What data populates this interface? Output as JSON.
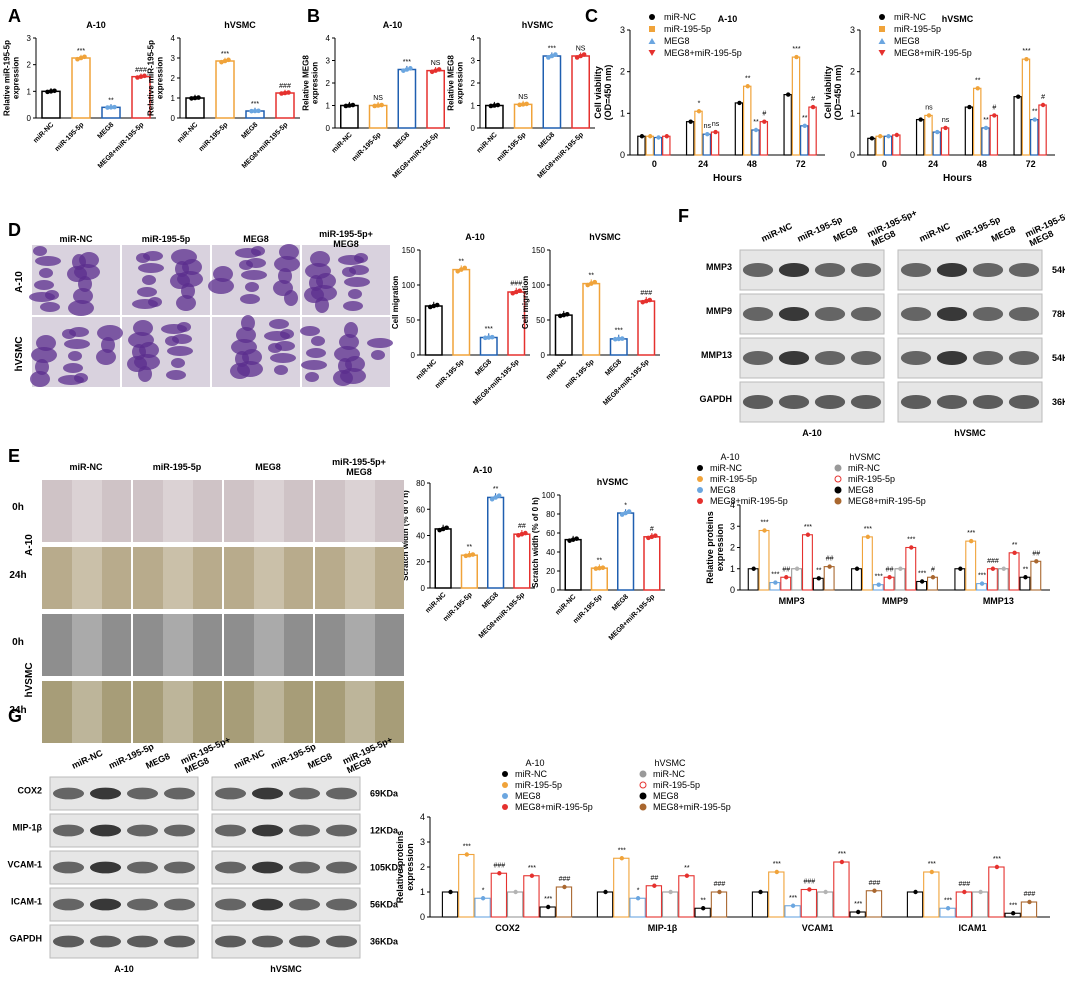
{
  "colors": {
    "black": "#000000",
    "orange": "#f0a33a",
    "blue": "#1f5fb0",
    "lightblue": "#6ba6e0",
    "red": "#e5312e",
    "grey": "#b3b3b3",
    "brown": "#a9672f",
    "micro_bg": "#d9d2de",
    "tissue": "#5b2d8e"
  },
  "panels": {
    "A": "A",
    "B": "B",
    "C": "C",
    "D": "D",
    "E": "E",
    "F": "F",
    "G": "G"
  },
  "groups": [
    "miR-NC",
    "miR-195-5p",
    "MEG8",
    "MEG8+miR-195-5p"
  ],
  "blot_group_labels": [
    "miR-NC",
    "miR-195-5p",
    "MEG8",
    "miR-195-5p+\nMEG8"
  ],
  "micro_group_labels": [
    "miR-NC",
    "miR-195-5p",
    "MEG8",
    "miR-195-5p+\nMEG8"
  ],
  "cell_lines": {
    "a10": "A-10",
    "hvsmc": "hVSMC"
  },
  "time_labels": {
    "t0": "0h",
    "t24": "24h"
  },
  "chart_data": [
    {
      "id": "A1",
      "type": "bar",
      "title": "A-10",
      "ylabel": "Relative miR-195-5p\nexpression",
      "ylim": [
        0,
        3
      ],
      "yticks": [
        0,
        1,
        2,
        3
      ],
      "categories": [
        "miR-NC",
        "miR-195-5p",
        "MEG8",
        "MEG8+miR-195-5p"
      ],
      "values": [
        1.0,
        2.25,
        0.4,
        1.55
      ],
      "marks": [
        "",
        "***",
        "**",
        "###"
      ]
    },
    {
      "id": "A2",
      "type": "bar",
      "title": "hVSMC",
      "ylabel": "Relative miR-195-5p\nexpression",
      "ylim": [
        0,
        4
      ],
      "yticks": [
        0,
        1,
        2,
        3,
        4
      ],
      "categories": [
        "miR-NC",
        "miR-195-5p",
        "MEG8",
        "MEG8+miR-195-5p"
      ],
      "values": [
        1.0,
        2.85,
        0.35,
        1.25
      ],
      "marks": [
        "",
        "***",
        "***",
        "###"
      ]
    },
    {
      "id": "B1",
      "type": "bar",
      "title": "A-10",
      "ylabel": "Relative MEG8\nexpression",
      "ylim": [
        0,
        4
      ],
      "yticks": [
        0,
        1,
        2,
        3,
        4
      ],
      "categories": [
        "miR-NC",
        "miR-195-5p",
        "MEG8",
        "MEG8+miR-195-5p"
      ],
      "values": [
        1.0,
        1.0,
        2.6,
        2.55
      ],
      "marks": [
        "",
        "NS",
        "***",
        "NS"
      ]
    },
    {
      "id": "B2",
      "type": "bar",
      "title": "hVSMC",
      "ylabel": "Relative MEG8\nexpression",
      "ylim": [
        0,
        4
      ],
      "yticks": [
        0,
        1,
        2,
        3,
        4
      ],
      "categories": [
        "miR-NC",
        "miR-195-5p",
        "MEG8",
        "MEG8+miR-195-5p"
      ],
      "values": [
        1.0,
        1.05,
        3.2,
        3.2
      ],
      "marks": [
        "",
        "NS",
        "***",
        "NS"
      ]
    },
    {
      "id": "C1",
      "type": "bar",
      "title": "A-10",
      "xlabel": "Hours",
      "ylabel": "Cell viability\n(OD=450 nm)",
      "ylim": [
        0,
        3
      ],
      "yticks": [
        0,
        1,
        2,
        3
      ],
      "categories": [
        "0",
        "24",
        "48",
        "72"
      ],
      "series": [
        {
          "name": "miR-NC",
          "values": [
            0.45,
            0.8,
            1.25,
            1.45
          ]
        },
        {
          "name": "miR-195-5p",
          "values": [
            0.45,
            1.05,
            1.65,
            2.35
          ]
        },
        {
          "name": "MEG8",
          "values": [
            0.42,
            0.5,
            0.6,
            0.7
          ]
        },
        {
          "name": "MEG8+miR-195-5p",
          "values": [
            0.45,
            0.55,
            0.8,
            1.15
          ]
        }
      ],
      "marks": [
        [
          "",
          "",
          "",
          ""
        ],
        [
          "",
          "*",
          "ns",
          "ns"
        ],
        [
          "",
          "**",
          "**",
          "#"
        ],
        [
          "",
          "***",
          "**",
          "#"
        ]
      ],
      "legend": [
        "miR-NC",
        "miR-195-5p",
        "MEG8",
        "MEG8+miR-195-5p"
      ]
    },
    {
      "id": "C2",
      "type": "bar",
      "title": "hVSMC",
      "xlabel": "Hours",
      "ylabel": "Cell viability\n(OD=450 nm)",
      "ylim": [
        0,
        3
      ],
      "yticks": [
        0,
        1,
        2,
        3
      ],
      "categories": [
        "0",
        "24",
        "48",
        "72"
      ],
      "series": [
        {
          "name": "miR-NC",
          "values": [
            0.4,
            0.85,
            1.15,
            1.4
          ]
        },
        {
          "name": "miR-195-5p",
          "values": [
            0.45,
            0.95,
            1.6,
            2.3
          ]
        },
        {
          "name": "MEG8",
          "values": [
            0.45,
            0.55,
            0.65,
            0.85
          ]
        },
        {
          "name": "MEG8+miR-195-5p",
          "values": [
            0.48,
            0.65,
            0.95,
            1.2
          ]
        }
      ],
      "marks": [
        [
          "",
          "",
          "",
          ""
        ],
        [
          "",
          "ns",
          "",
          "ns"
        ],
        [
          "",
          "**",
          "**",
          "#"
        ],
        [
          "",
          "***",
          "**",
          "#"
        ]
      ],
      "legend": [
        "miR-NC",
        "miR-195-5p",
        "MEG8",
        "MEG8+miR-195-5p"
      ]
    },
    {
      "id": "D1",
      "type": "bar",
      "title": "A-10",
      "ylabel": "Cell migration",
      "ylim": [
        0,
        150
      ],
      "yticks": [
        0,
        50,
        100,
        150
      ],
      "categories": [
        "miR-NC",
        "miR-195-5p",
        "MEG8",
        "MEG8+miR-195-5p"
      ],
      "values": [
        70,
        122,
        25,
        90
      ],
      "marks": [
        "",
        "**",
        "***",
        "###"
      ]
    },
    {
      "id": "D2",
      "type": "bar",
      "title": "hVSMC",
      "ylabel": "Cell migration",
      "ylim": [
        0,
        150
      ],
      "yticks": [
        0,
        50,
        100,
        150
      ],
      "categories": [
        "miR-NC",
        "miR-195-5p",
        "MEG8",
        "MEG8+miR-195-5p"
      ],
      "values": [
        57,
        102,
        23,
        77
      ],
      "marks": [
        "",
        "**",
        "***",
        "###"
      ]
    },
    {
      "id": "E1",
      "type": "bar",
      "title": "A-10",
      "ylabel": "Scratch width (% of 0 h)",
      "ylim": [
        0,
        80
      ],
      "yticks": [
        0,
        20,
        40,
        60,
        80
      ],
      "categories": [
        "miR-NC",
        "miR-195-5p",
        "MEG8",
        "MEG8+miR-195-5p"
      ],
      "values": [
        45,
        25,
        69,
        41
      ],
      "marks": [
        "",
        "**",
        "**",
        "##"
      ]
    },
    {
      "id": "E2",
      "type": "bar",
      "title": "hVSMC",
      "ylabel": "Scratch width (% of 0 h)",
      "ylim": [
        0,
        100
      ],
      "yticks": [
        0,
        20,
        40,
        60,
        80,
        100
      ],
      "categories": [
        "miR-NC",
        "miR-195-5p",
        "MEG8",
        "MEG8+miR-195-5p"
      ],
      "values": [
        53,
        23,
        81,
        56
      ],
      "marks": [
        "",
        "**",
        "*",
        "#"
      ]
    },
    {
      "id": "F",
      "type": "bar",
      "ylabel": "Relative proteins\nexpression",
      "ylim": [
        0,
        4
      ],
      "yticks": [
        0,
        1,
        2,
        3,
        4
      ],
      "categories": [
        "MMP3",
        "MMP9",
        "MMP13"
      ],
      "series": [
        {
          "name": "A-10 miR-NC",
          "values": [
            1.0,
            1.0,
            1.0
          ]
        },
        {
          "name": "A-10 miR-195-5p",
          "values": [
            2.8,
            2.5,
            2.3
          ]
        },
        {
          "name": "A-10 MEG8",
          "values": [
            0.35,
            0.25,
            0.3
          ]
        },
        {
          "name": "A-10 MEG8+miR-195-5p",
          "values": [
            0.6,
            0.6,
            1.0
          ]
        },
        {
          "name": "hVSMC miR-NC",
          "values": [
            1.0,
            1.0,
            1.0
          ]
        },
        {
          "name": "hVSMC miR-195-5p",
          "values": [
            2.6,
            2.0,
            1.75
          ]
        },
        {
          "name": "hVSMC MEG8",
          "values": [
            0.55,
            0.4,
            0.6
          ]
        },
        {
          "name": "hVSMC MEG8+miR-195-5p",
          "values": [
            1.1,
            0.6,
            1.35
          ]
        }
      ],
      "marks": [
        [
          "",
          "***",
          "***",
          "##",
          "",
          "***",
          "**",
          "##"
        ],
        [
          "",
          "***",
          "***",
          "##",
          "",
          "***",
          "***",
          "#"
        ],
        [
          "",
          "***",
          "***",
          "###",
          "",
          "**",
          "**",
          "##"
        ]
      ],
      "legend_titles": [
        "A-10",
        "hVSMC"
      ],
      "legend": [
        "miR-NC",
        "miR-195-5p",
        "MEG8",
        "MEG8+miR-195-5p"
      ]
    },
    {
      "id": "G",
      "type": "bar",
      "ylabel": "Relative proteins\nexpression",
      "ylim": [
        0,
        4
      ],
      "yticks": [
        0,
        1,
        2,
        3,
        4
      ],
      "categories": [
        "COX2",
        "MIP-1β",
        "VCAM1",
        "ICAM1"
      ],
      "series": [
        {
          "name": "A-10 miR-NC",
          "values": [
            1.0,
            1.0,
            1.0,
            1.0
          ]
        },
        {
          "name": "A-10 miR-195-5p",
          "values": [
            2.5,
            2.35,
            1.8,
            1.8
          ]
        },
        {
          "name": "A-10 MEG8",
          "values": [
            0.75,
            0.75,
            0.45,
            0.35
          ]
        },
        {
          "name": "A-10 MEG8+miR-195-5p",
          "values": [
            1.75,
            1.25,
            1.1,
            1.0
          ]
        },
        {
          "name": "hVSMC miR-NC",
          "values": [
            1.0,
            1.0,
            1.0,
            1.0
          ]
        },
        {
          "name": "hVSMC miR-195-5p",
          "values": [
            1.65,
            1.65,
            2.2,
            2.0
          ]
        },
        {
          "name": "hVSMC MEG8",
          "values": [
            0.4,
            0.35,
            0.2,
            0.15
          ]
        },
        {
          "name": "hVSMC MEG8+miR-195-5p",
          "values": [
            1.2,
            1.0,
            1.05,
            0.6
          ]
        }
      ],
      "marks": [
        [
          "",
          "***",
          "*",
          "###",
          "",
          "***",
          "***",
          "###"
        ],
        [
          "",
          "***",
          "*",
          "##",
          "",
          "**",
          "**",
          "###"
        ],
        [
          "",
          "***",
          "***",
          "###",
          "",
          "***",
          "***",
          "###"
        ],
        [
          "",
          "***",
          "***",
          "###",
          "",
          "***",
          "***",
          "###"
        ]
      ],
      "legend_titles": [
        "A-10",
        "hVSMC"
      ],
      "legend": [
        "miR-NC",
        "miR-195-5p",
        "MEG8",
        "MEG8+miR-195-5p"
      ]
    }
  ],
  "blots": {
    "F": {
      "rows": [
        "MMP3",
        "MMP9",
        "MMP13",
        "GAPDH"
      ],
      "kda": [
        "54KDa",
        "78KDa",
        "54KDa",
        "36KDa"
      ],
      "bottom": [
        "A-10",
        "hVSMC"
      ]
    },
    "G": {
      "rows": [
        "COX2",
        "MIP-1β",
        "VCAM-1",
        "ICAM-1",
        "GAPDH"
      ],
      "kda": [
        "69KDa",
        "12KDa",
        "105KDa",
        "56KDa",
        "36KDa"
      ],
      "bottom": [
        "A-10",
        "hVSMC"
      ]
    }
  }
}
